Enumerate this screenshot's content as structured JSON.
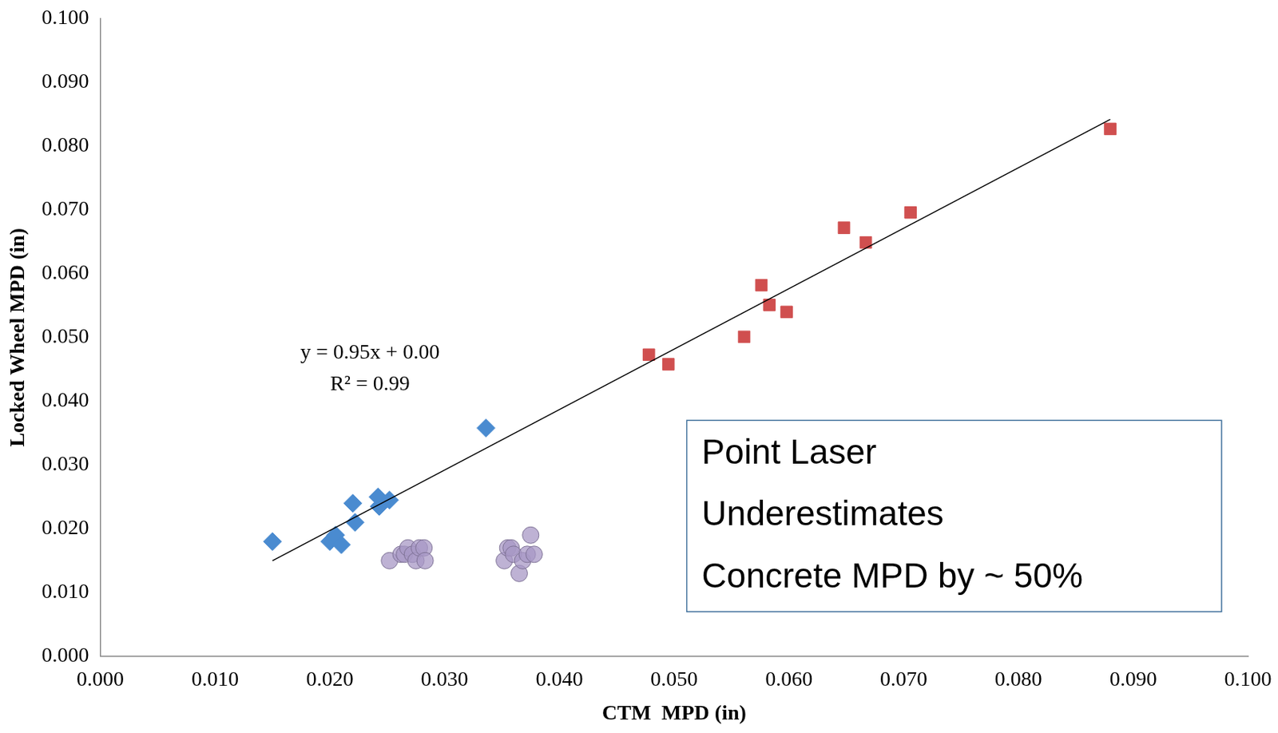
{
  "chart_data": {
    "type": "scatter",
    "x_label": "CTM  MPD (in)",
    "y_label": "Locked Wheel MPD (in)",
    "xlim": [
      0.0,
      0.1
    ],
    "ylim": [
      0.0,
      0.1
    ],
    "xticks": [
      {
        "value": 0.0,
        "label": "0.000"
      },
      {
        "value": 0.01,
        "label": "0.010"
      },
      {
        "value": 0.02,
        "label": "0.020"
      },
      {
        "value": 0.03,
        "label": "0.030"
      },
      {
        "value": 0.04,
        "label": "0.040"
      },
      {
        "value": 0.05,
        "label": "0.050"
      },
      {
        "value": 0.06,
        "label": "0.060"
      },
      {
        "value": 0.07,
        "label": "0.070"
      },
      {
        "value": 0.08,
        "label": "0.080"
      },
      {
        "value": 0.09,
        "label": "0.090"
      },
      {
        "value": 0.1,
        "label": "0.100"
      }
    ],
    "yticks": [
      {
        "value": 0.0,
        "label": "0.000"
      },
      {
        "value": 0.01,
        "label": "0.010"
      },
      {
        "value": 0.02,
        "label": "0.020"
      },
      {
        "value": 0.03,
        "label": "0.030"
      },
      {
        "value": 0.04,
        "label": "0.040"
      },
      {
        "value": 0.05,
        "label": "0.050"
      },
      {
        "value": 0.06,
        "label": "0.060"
      },
      {
        "value": 0.07,
        "label": "0.070"
      },
      {
        "value": 0.08,
        "label": "0.080"
      },
      {
        "value": 0.09,
        "label": "0.090"
      },
      {
        "value": 0.1,
        "label": "0.100"
      }
    ],
    "grid": false,
    "annotations": [
      "y = 0.95x + 0.00",
      "R² = 0.99"
    ],
    "text_box": [
      "Point Laser",
      "Underestimates",
      "Concrete MPD by ~ 50%"
    ],
    "series": [
      {
        "color": "#4a8bd0",
        "marker": "diamond",
        "x": [
          0.015,
          0.02,
          0.0205,
          0.021,
          0.022,
          0.0222,
          0.0242,
          0.0243,
          0.0252,
          0.0336
        ],
        "values": [
          0.018,
          0.018,
          0.019,
          0.0175,
          0.024,
          0.021,
          0.025,
          0.0235,
          0.0245,
          0.0358
        ]
      },
      {
        "color": "#d04f4f",
        "marker": "square",
        "x": [
          0.0478,
          0.0495,
          0.0561,
          0.0576,
          0.0583,
          0.0598,
          0.0648,
          0.0667,
          0.0706,
          0.088
        ],
        "values": [
          0.0473,
          0.0458,
          0.0501,
          0.0582,
          0.0551,
          0.054,
          0.0672,
          0.0649,
          0.0696,
          0.0827
        ]
      },
      {
        "color": "#a898c6",
        "marker": "circle",
        "x": [
          0.0252,
          0.0262,
          0.0265,
          0.0268,
          0.0272,
          0.0275,
          0.0278,
          0.0282,
          0.0283,
          0.0352,
          0.0355,
          0.0358,
          0.036,
          0.0365,
          0.0368,
          0.0372,
          0.0375,
          0.0378
        ],
        "values": [
          0.015,
          0.016,
          0.016,
          0.017,
          0.016,
          0.015,
          0.017,
          0.017,
          0.015,
          0.015,
          0.017,
          0.017,
          0.016,
          0.013,
          0.015,
          0.016,
          0.019,
          0.016
        ]
      },
      {
        "type": "line",
        "color": "#000000",
        "marker": "none",
        "line_style": "solid",
        "x": [
          0.015,
          0.088
        ],
        "values": [
          0.015,
          0.0842
        ]
      }
    ]
  }
}
